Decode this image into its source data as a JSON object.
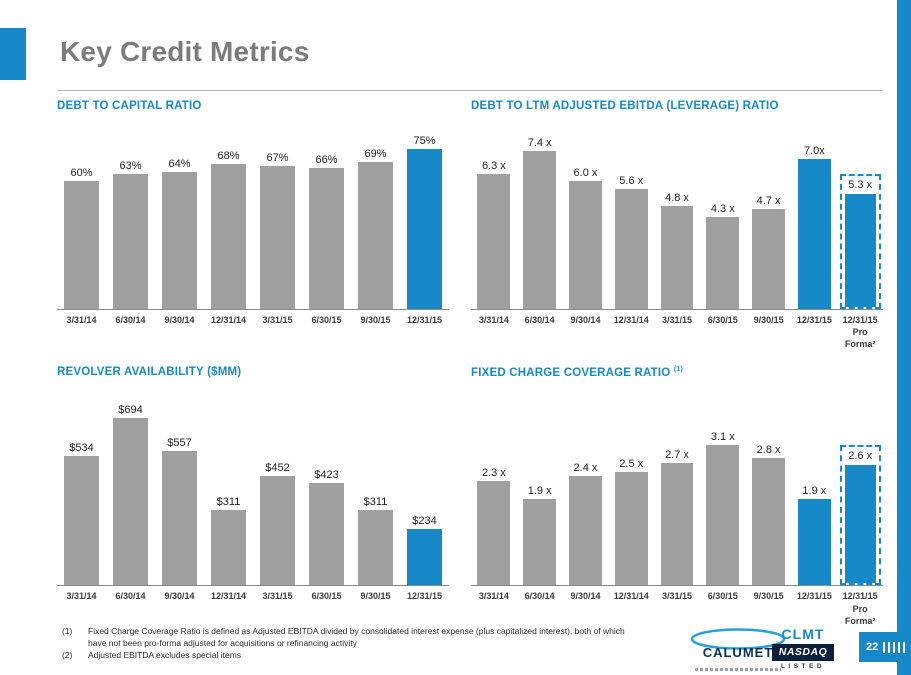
{
  "slide": {
    "title": "Key Credit Metrics",
    "page_number": "22"
  },
  "colors": {
    "accent": "#1789c9",
    "bar_gray": "#a0a0a0",
    "title_gray": "#7c7c7c"
  },
  "chart_data": [
    {
      "type": "bar",
      "title": "DEBT TO CAPITAL RATIO",
      "categories": [
        "3/31/14",
        "6/30/14",
        "9/30/14",
        "12/31/14",
        "3/31/15",
        "6/30/15",
        "9/30/15",
        "12/31/15"
      ],
      "values": [
        60,
        63,
        64,
        68,
        67,
        66,
        69,
        75
      ],
      "labels": [
        "60%",
        "63%",
        "64%",
        "68%",
        "67%",
        "66%",
        "69%",
        "75%"
      ],
      "xlabel": "",
      "ylabel": "",
      "ylim": [
        0,
        80
      ],
      "highlight_index": 7,
      "proforma_index": -1
    },
    {
      "type": "bar",
      "title": "DEBT TO LTM ADJUSTED EBITDA (LEVERAGE) RATIO",
      "categories": [
        "3/31/14",
        "6/30/14",
        "9/30/14",
        "12/31/14",
        "3/31/15",
        "6/30/15",
        "9/30/15",
        "12/31/15",
        "12/31/15\nPro Forma²"
      ],
      "values": [
        6.3,
        7.4,
        6.0,
        5.6,
        4.8,
        4.3,
        4.7,
        7.0,
        5.3
      ],
      "labels": [
        "6.3 x",
        "7.4 x",
        "6.0 x",
        "5.6 x",
        "4.8 x",
        "4.3 x",
        "4.7 x",
        "7.0x",
        "5.3 x"
      ],
      "xlabel": "",
      "ylabel": "",
      "ylim": [
        0,
        8
      ],
      "highlight_index": 7,
      "proforma_index": 8
    },
    {
      "type": "bar",
      "title": "REVOLVER AVAILABILITY ($MM)",
      "categories": [
        "3/31/14",
        "6/30/14",
        "9/30/14",
        "12/31/14",
        "3/31/15",
        "6/30/15",
        "9/30/15",
        "12/31/15"
      ],
      "values": [
        534,
        694,
        557,
        311,
        452,
        423,
        311,
        234
      ],
      "labels": [
        "$534",
        "$694",
        "$557",
        "$311",
        "$452",
        "$423",
        "$311",
        "$234"
      ],
      "xlabel": "",
      "ylabel": "",
      "ylim": [
        0,
        750
      ],
      "highlight_index": 7,
      "proforma_index": -1
    },
    {
      "type": "bar",
      "title": "FIXED CHARGE COVERAGE RATIO",
      "title_note": "(1)",
      "categories": [
        "3/31/14",
        "6/30/14",
        "9/30/14",
        "12/31/14",
        "3/31/15",
        "6/30/15",
        "9/30/15",
        "12/31/15",
        "12/31/15\nPro Forma²"
      ],
      "values": [
        2.3,
        1.9,
        2.4,
        2.5,
        2.7,
        3.1,
        2.8,
        1.9,
        2.6
      ],
      "labels": [
        "2.3 x",
        "1.9 x",
        "2.4 x",
        "2.5 x",
        "2.7 x",
        "3.1 x",
        "2.8 x",
        "1.9 x",
        "2.6 x"
      ],
      "xlabel": "",
      "ylabel": "",
      "ylim": [
        0,
        4.0
      ],
      "highlight_index": 7,
      "proforma_index": 8
    }
  ],
  "footnotes": [
    {
      "num": "(1)",
      "text": "Fixed Charge Coverage Ratio is defined as Adjusted EBITDA divided by consolidated interest expense (plus capitalized interest), both of which have not been pro-forma adjusted for acquisitions or refinancing activity"
    },
    {
      "num": "(2)",
      "text": "Adjusted EBITDA excludes special items"
    }
  ],
  "logos": {
    "calumet": "CALUMET",
    "clmt": "CLMT",
    "nasdaq": "NASDAQ",
    "listed": "LISTED"
  }
}
